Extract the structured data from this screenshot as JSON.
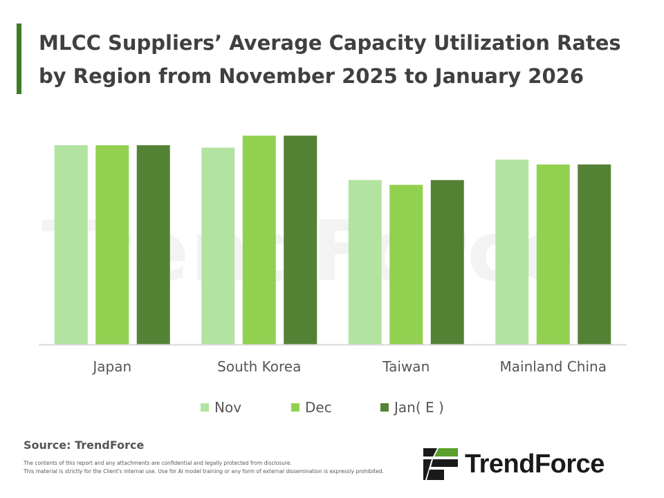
{
  "title": "MLCC Suppliers’ Average Capacity Utilization Rates by Region from November 2025 to January 2026",
  "source": "Source: TrendForce",
  "disclaimer": [
    "The contents of this report and any attachments are confidential and legally protected from disclosure.",
    "This material is strictly for the Client's internal use. Use for AI model training or any form of external dissemination is expressly prohibited."
  ],
  "logo_text": "TrendForce",
  "watermark": "TrendForce",
  "colors": {
    "nov": "#b3e3a0",
    "dec": "#92d050",
    "jan": "#548235",
    "title_bar": "#3f7a24"
  },
  "chart_data": {
    "type": "bar",
    "title": "MLCC Suppliers’ Average Capacity Utilization Rates by Region from November 2025 to January 2026",
    "xlabel": "",
    "ylabel": "",
    "categories": [
      "Japan",
      "South Korea",
      "Taiwan",
      "Mainland China"
    ],
    "series": [
      {
        "name": "Nov",
        "values": [
          83,
          82,
          68.5,
          77
        ]
      },
      {
        "name": "Dec",
        "values": [
          83,
          87,
          66.5,
          75
        ]
      },
      {
        "name": "Jan( E )",
        "values": [
          83,
          87,
          68.5,
          75
        ]
      }
    ],
    "ylim": [
      0,
      100
    ],
    "grid": false,
    "legend": "bottom",
    "y_axis_labels_shown": false
  }
}
